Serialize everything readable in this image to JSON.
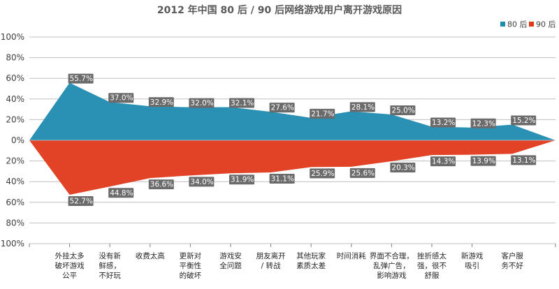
{
  "colors": {
    "series_80": "#1f8bb0",
    "series_90": "#e0381a",
    "label_bg": "#6b6b6b",
    "grid": "#bfbfbf"
  },
  "chart_data": {
    "type": "area",
    "title": "2012 年中国 80 后 / 90 后网络游戏用户离开游戏原因",
    "xlabel": "",
    "ylabel": "",
    "ylim": [
      -100,
      100
    ],
    "y_tick_values": [
      100,
      80,
      60,
      40,
      20,
      0,
      -20,
      -40,
      -60,
      -80,
      -100
    ],
    "y_tick_labels": [
      "100%",
      "80%",
      "60%",
      "40%",
      "20%",
      "0%",
      "20%",
      "40%",
      "60%",
      "80%",
      "100%"
    ],
    "grid": true,
    "legend_position": "top-right",
    "categories": [
      [
        "外挂太多",
        "破坏游戏",
        "公平"
      ],
      [
        "没有新",
        "鲜感，",
        "不好玩"
      ],
      [
        "收费太高"
      ],
      [
        "更新对",
        "平衡性",
        "的破坏"
      ],
      [
        "游戏安",
        "全问题"
      ],
      [
        "朋友离开",
        "/ 转战"
      ],
      [
        "其他玩家",
        "素质太差"
      ],
      [
        "时间消耗"
      ],
      [
        "界面不合理，",
        "乱弹广告，",
        "影响游戏"
      ],
      [
        "挫折感太",
        "强，很不",
        "舒服"
      ],
      [
        "新游戏",
        "吸引"
      ],
      [
        "客户服",
        "务不好"
      ]
    ],
    "series": [
      {
        "name": "80 后",
        "values": [
          55.7,
          37.0,
          32.9,
          32.0,
          32.1,
          27.6,
          21.7,
          28.1,
          25.0,
          13.2,
          12.3,
          15.2
        ],
        "labels": [
          "55.7%",
          "37.0%",
          "32.9%",
          "32.0%",
          "32.1%",
          "27.6%",
          "21.7%",
          "28.1%",
          "25.0%",
          "13.2%",
          "12.3%",
          "15.2%"
        ]
      },
      {
        "name": "90 后",
        "values": [
          52.7,
          44.8,
          36.6,
          34.0,
          31.9,
          31.1,
          25.9,
          25.6,
          20.3,
          14.3,
          13.9,
          13.1
        ],
        "labels": [
          "52.7%",
          "44.8%",
          "36.6%",
          "34.0%",
          "31.9%",
          "31.1%",
          "25.9%",
          "25.6%",
          "20.3%",
          "14.3%",
          "13.9%",
          "13.1%"
        ]
      }
    ]
  }
}
